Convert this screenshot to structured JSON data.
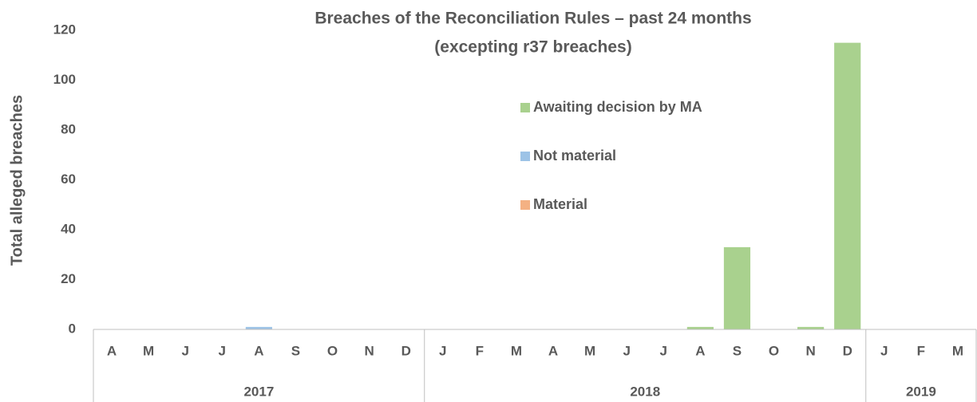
{
  "chart_data": {
    "type": "stacked_bar",
    "title": [
      "Breaches of the Reconciliation Rules – past 24 months",
      "(excepting r37 breaches)"
    ],
    "y_label": "Total alleged breaches",
    "groups": [
      {
        "label": "2017",
        "categories": [
          "A",
          "M",
          "J",
          "J",
          "A",
          "S",
          "O",
          "N",
          "D"
        ]
      },
      {
        "label": "2018",
        "categories": [
          "J",
          "F",
          "M",
          "A",
          "M",
          "J",
          "J",
          "A",
          "S",
          "O",
          "N",
          "D"
        ]
      },
      {
        "label": "2019",
        "categories": [
          "J",
          "F",
          "M"
        ]
      }
    ],
    "series": [
      {
        "name": "Material",
        "color": "#f4b183",
        "values": [
          0,
          0,
          0,
          0,
          0,
          0,
          0,
          0,
          0,
          0,
          0,
          0,
          0,
          0,
          0,
          0,
          0,
          0,
          0,
          0,
          0,
          0,
          0,
          0
        ]
      },
      {
        "name": "Not material",
        "color": "#9dc3e6",
        "values": [
          0,
          0,
          0,
          0,
          1,
          0,
          0,
          0,
          0,
          0,
          0,
          0,
          0,
          0,
          0,
          0,
          0,
          0,
          0,
          0,
          0,
          0,
          0,
          0
        ]
      },
      {
        "name": "Awaiting decision by MA",
        "color": "#a9d18e",
        "values": [
          0,
          0,
          0,
          0,
          0,
          0,
          0,
          0,
          0,
          0,
          0,
          0,
          0,
          0,
          0,
          0,
          1,
          33,
          0,
          1,
          115,
          0,
          0,
          0
        ]
      }
    ],
    "ylim": [
      0,
      120
    ],
    "yticks": [
      0,
      20,
      40,
      60,
      80,
      100,
      120
    ],
    "grid": false
  }
}
